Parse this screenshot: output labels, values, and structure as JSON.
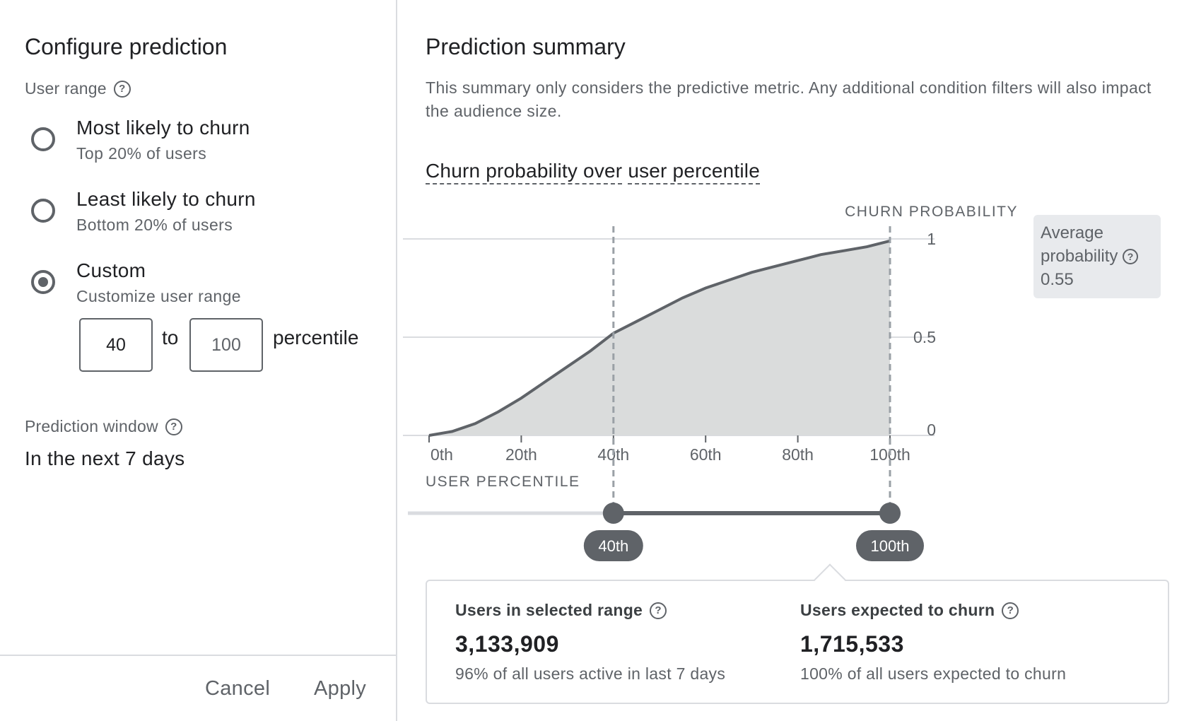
{
  "configure": {
    "title": "Configure prediction",
    "user_range_label": "User range",
    "options": [
      {
        "label": "Most likely to churn",
        "sublabel": "Top 20% of users",
        "selected": false
      },
      {
        "label": "Least likely to churn",
        "sublabel": "Bottom 20% of users",
        "selected": false
      },
      {
        "label": "Custom",
        "sublabel": "Customize user range",
        "selected": true
      }
    ],
    "range_from": "40",
    "range_to": "100",
    "to_label": "to",
    "unit_label": "percentile",
    "window_label": "Prediction window",
    "window_value": "In the next 7 days",
    "cancel_label": "Cancel",
    "apply_label": "Apply"
  },
  "summary": {
    "title": "Prediction summary",
    "description": "This summary only considers the predictive metric. Any additional condition filters will also impact the audience size.",
    "chart_title_part1": "Churn probability over",
    "chart_title_part2": "user percentile",
    "average_label": "Average probability",
    "average_value": "0.55",
    "slider_min_label": "40th",
    "slider_max_label": "100th",
    "stats": [
      {
        "label": "Users in selected range",
        "value": "3,133,909",
        "sublabel": "96% of all users active in last 7 days"
      },
      {
        "label": "Users expected to churn",
        "value": "1,715,533",
        "sublabel": "100% of all users expected to churn"
      }
    ]
  },
  "chart_data": {
    "type": "area",
    "x": [
      0,
      5,
      10,
      15,
      20,
      25,
      30,
      35,
      40,
      45,
      50,
      55,
      60,
      65,
      70,
      75,
      80,
      85,
      90,
      95,
      100
    ],
    "y": [
      0.0,
      0.02,
      0.06,
      0.12,
      0.19,
      0.27,
      0.35,
      0.43,
      0.52,
      0.58,
      0.64,
      0.7,
      0.75,
      0.79,
      0.83,
      0.86,
      0.89,
      0.92,
      0.94,
      0.96,
      0.99
    ],
    "ylabel": "CHURN PROBABILITY",
    "xlabel": "USER PERCENTILE",
    "x_ticks": [
      "0th",
      "20th",
      "40th",
      "60th",
      "80th",
      "100th"
    ],
    "x_tick_values": [
      0,
      20,
      40,
      60,
      80,
      100
    ],
    "y_ticks": [
      "0",
      "0.5",
      "1"
    ],
    "y_tick_values": [
      0,
      0.5,
      1
    ],
    "xlim": [
      0,
      100
    ],
    "ylim": [
      0,
      1
    ],
    "selected_range": [
      40,
      100
    ],
    "grid": true,
    "colors": {
      "area": "#dadcdc",
      "line": "#5f6368",
      "grid": "#dadce0",
      "marker": "#9aa0a6",
      "slider": "#5f6368",
      "slider_track": "#dadce0"
    }
  }
}
